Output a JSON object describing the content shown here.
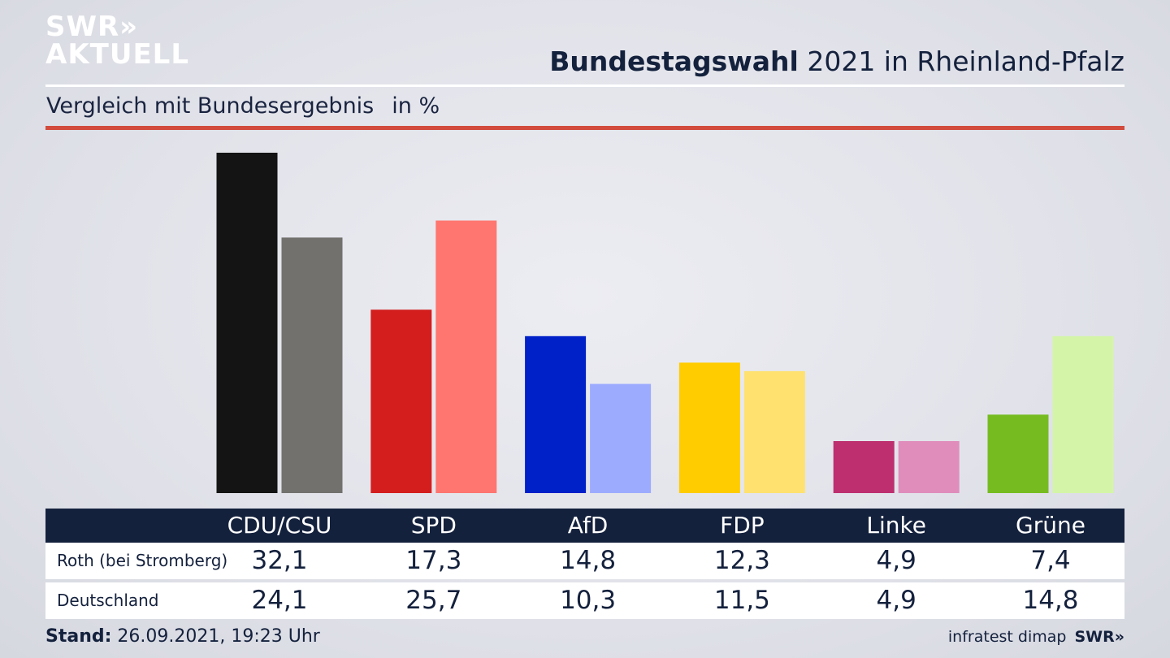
{
  "header": {
    "logo_line1": "SWR»",
    "logo_line2": "AKTUELL",
    "title_bold": "Bundestagswahl",
    "title_rest": " 2021 in Rheinland-Pfalz",
    "subtitle": "Vergleich mit Bundesergebnis",
    "unit": "in %"
  },
  "chart_data": {
    "type": "bar",
    "title": "Bundestagswahl 2021 in Rheinland-Pfalz",
    "subtitle": "Vergleich mit Bundesergebnis",
    "ylabel": "in %",
    "categories": [
      "CDU/CSU",
      "SPD",
      "AfD",
      "FDP",
      "Linke",
      "Grüne"
    ],
    "series": [
      {
        "name": "Roth (bei Stromberg)",
        "values": [
          32.1,
          17.3,
          14.8,
          12.3,
          4.9,
          7.4
        ],
        "value_labels": [
          "32,1",
          "17,3",
          "14,8",
          "12,3",
          "4,9",
          "7,4"
        ],
        "colors": [
          "#141414",
          "#d41e1e",
          "#0020c8",
          "#ffcc00",
          "#bd2f6f",
          "#76bc21"
        ]
      },
      {
        "name": "Deutschland",
        "values": [
          24.1,
          25.7,
          10.3,
          11.5,
          4.9,
          14.8
        ],
        "value_labels": [
          "24,1",
          "25,7",
          "10,3",
          "11,5",
          "4,9",
          "14,8"
        ],
        "colors": [
          "#72716e",
          "#ff7570",
          "#9dabff",
          "#ffe170",
          "#e08dbc",
          "#d4f5a7"
        ]
      }
    ],
    "ylim": [
      0,
      32.1
    ],
    "grid": false,
    "legend": "table-below"
  },
  "footer": {
    "stand_label": "Stand:",
    "stand_value": " 26.09.2021, 19:23 Uhr",
    "source": "infratest dimap",
    "swr": "SWR»"
  }
}
